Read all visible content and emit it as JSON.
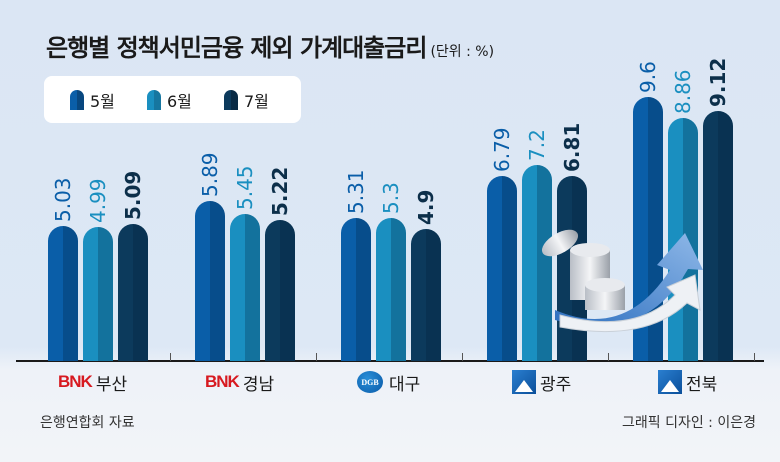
{
  "title": "은행별 정책서민금융 제외 가계대출금리",
  "unit": "(단위 : %)",
  "legend": [
    {
      "label": "5월",
      "color": "#0a5ea8"
    },
    {
      "label": "6월",
      "color": "#1a8fc0"
    },
    {
      "label": "7월",
      "color": "#0c3a5c"
    }
  ],
  "categories": [
    {
      "logo": "BNK",
      "name": "부산",
      "logo_type": "bnk"
    },
    {
      "logo": "BNK",
      "name": "경남",
      "logo_type": "bnk"
    },
    {
      "logo": "DGB",
      "name": "대구",
      "logo_type": "dgb"
    },
    {
      "logo": "",
      "name": "광주",
      "logo_type": "jb"
    },
    {
      "logo": "",
      "name": "전북",
      "logo_type": "jb"
    }
  ],
  "values": [
    [
      "5.03",
      "4.99",
      "5.09"
    ],
    [
      "5.89",
      "5.45",
      "5.22"
    ],
    [
      "5.31",
      "5.3",
      "4.9"
    ],
    [
      "6.79",
      "7.2",
      "6.81"
    ],
    [
      "9.6",
      "8.86",
      "9.12"
    ]
  ],
  "source": "은행연합회 자료",
  "credit": "그래픽 디자인 : 이은경",
  "chart_data": {
    "type": "bar",
    "title": "은행별 정책서민금융 제외 가계대출금리",
    "subtitle": "(단위 : %)",
    "categories": [
      "BNK 부산",
      "BNK 경남",
      "DGB 대구",
      "광주",
      "전북"
    ],
    "series": [
      {
        "name": "5월",
        "values": [
          5.03,
          5.89,
          5.31,
          6.79,
          9.6
        ]
      },
      {
        "name": "6월",
        "values": [
          4.99,
          5.45,
          5.3,
          7.2,
          8.86
        ]
      },
      {
        "name": "7월",
        "values": [
          5.09,
          5.22,
          4.9,
          6.81,
          9.12
        ]
      }
    ],
    "xlabel": "",
    "ylabel": "%",
    "legend_position": "top-left",
    "grid": false,
    "annotations": [
      "은행연합회 자료",
      "그래픽 디자인 : 이은경"
    ]
  }
}
